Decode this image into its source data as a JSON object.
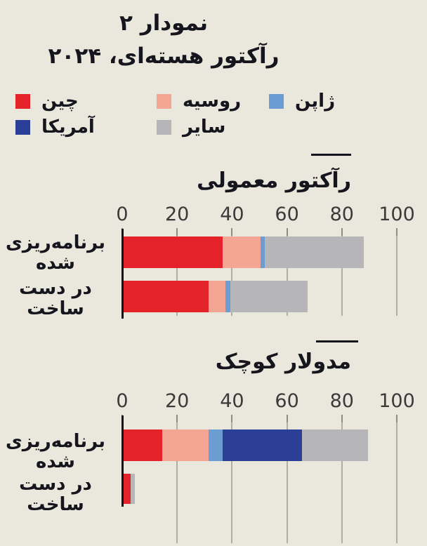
{
  "page": {
    "background": "#eae8dc",
    "title_line1": "نمودار ۲",
    "title_line2": "رآکتور هسته‌ای، ۲۰۲۴"
  },
  "legend": {
    "position": "top",
    "items": [
      {
        "key": "china",
        "label": "چین",
        "color": "#e4222a"
      },
      {
        "key": "russia",
        "label": "روسیه",
        "color": "#f4a694"
      },
      {
        "key": "japan",
        "label": "ژاپن",
        "color": "#6b9dd2"
      },
      {
        "key": "america",
        "label": "آمریکا",
        "color": "#2b3f96"
      },
      {
        "key": "other",
        "label": "سایر",
        "color": "#b6b6b8"
      }
    ]
  },
  "chart_data": [
    {
      "type": "bar",
      "orientation": "horizontal",
      "title": "رآکتور معمولی",
      "xlim": [
        0,
        100
      ],
      "x_ticks": [
        0,
        20,
        40,
        60,
        80,
        100
      ],
      "grid": true,
      "series_keys": [
        "china",
        "russia",
        "japan",
        "america",
        "other"
      ],
      "rows": [
        {
          "label": "برنامه‌ریزی شده",
          "label_lines": [
            "برنامه‌ریزی",
            "شده"
          ],
          "values": {
            "china": 36,
            "russia": 14,
            "japan": 1.5,
            "america": 0,
            "other": 36
          }
        },
        {
          "label": "در دست ساخت",
          "label_lines": [
            "در دست",
            "ساخت"
          ],
          "values": {
            "china": 31,
            "russia": 6,
            "japan": 2,
            "america": 0,
            "other": 28
          }
        }
      ]
    },
    {
      "type": "bar",
      "orientation": "horizontal",
      "title": "مدولار کوچک",
      "xlim": [
        0,
        100
      ],
      "x_ticks": [
        0,
        20,
        40,
        60,
        80,
        100
      ],
      "grid": true,
      "series_keys": [
        "china",
        "russia",
        "japan",
        "america",
        "other"
      ],
      "rows": [
        {
          "label": "برنامه‌ریزی شده",
          "label_lines": [
            "برنامه‌ریزی",
            "شده"
          ],
          "values": {
            "china": 14,
            "russia": 17,
            "japan": 5,
            "america": 29,
            "other": 24
          }
        },
        {
          "label": "در دست ساخت",
          "label_lines": [
            "در دست",
            "ساخت"
          ],
          "values": {
            "china": 2.5,
            "russia": 0,
            "japan": 0,
            "america": 0,
            "other": 1.5
          }
        }
      ]
    }
  ]
}
